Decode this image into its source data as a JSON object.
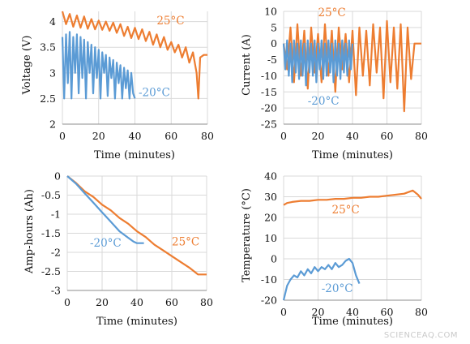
{
  "colors": {
    "warm": "#ED7D31",
    "cold": "#5B9BD5",
    "grid": "#d9d9d9",
    "axis": "#8c8c8c"
  },
  "watermark": "SCIENCEAQ.COM",
  "chart_data": [
    {
      "id": "voltage",
      "type": "line",
      "xlabel": "Time (minutes)",
      "ylabel": "Voltage (V)",
      "xlim": [
        0,
        80
      ],
      "ylim": [
        2,
        4.2
      ],
      "xticks": [
        0,
        20,
        40,
        60,
        80
      ],
      "yticks": [
        2,
        2.5,
        3,
        3.5,
        4
      ],
      "yticklabels": [
        "2",
        "2.5",
        "3",
        "3.5",
        "4"
      ],
      "grid": true,
      "series": [
        {
          "name": "25°C",
          "color": "warm",
          "x": [
            0,
            2,
            4,
            6,
            8,
            10,
            12,
            14,
            16,
            18,
            20,
            22,
            24,
            26,
            28,
            30,
            32,
            34,
            36,
            38,
            40,
            42,
            44,
            46,
            48,
            50,
            52,
            54,
            56,
            58,
            60,
            62,
            64,
            66,
            68,
            70,
            72,
            74,
            75,
            76,
            78,
            80
          ],
          "y": [
            4.2,
            3.95,
            4.15,
            3.9,
            4.12,
            3.88,
            4.1,
            3.86,
            4.05,
            3.85,
            4.02,
            3.84,
            4.0,
            3.82,
            3.98,
            3.78,
            3.95,
            3.72,
            3.9,
            3.68,
            3.88,
            3.66,
            3.85,
            3.62,
            3.8,
            3.55,
            3.75,
            3.5,
            3.7,
            3.45,
            3.6,
            3.4,
            3.55,
            3.3,
            3.5,
            3.2,
            3.4,
            3.0,
            2.5,
            3.3,
            3.35,
            3.35
          ]
        },
        {
          "name": "-20°C",
          "color": "cold",
          "x": [
            0,
            1,
            2,
            3,
            4,
            5,
            6,
            7,
            8,
            9,
            10,
            11,
            12,
            13,
            14,
            15,
            16,
            17,
            18,
            19,
            20,
            21,
            22,
            23,
            24,
            25,
            26,
            27,
            28,
            29,
            30,
            31,
            32,
            33,
            34,
            35,
            36,
            37,
            38,
            39,
            40
          ],
          "y": [
            3.7,
            2.5,
            3.75,
            2.8,
            3.8,
            2.5,
            3.7,
            3.0,
            3.75,
            2.6,
            3.7,
            2.9,
            3.65,
            2.5,
            3.6,
            3.0,
            3.55,
            2.6,
            3.5,
            2.9,
            3.45,
            2.5,
            3.4,
            3.0,
            3.35,
            2.55,
            3.3,
            2.9,
            3.25,
            2.5,
            3.2,
            2.8,
            3.15,
            2.5,
            3.1,
            2.7,
            3.05,
            2.5,
            3.0,
            2.6,
            2.5
          ]
        }
      ],
      "annotations": [
        {
          "text": "25°C",
          "series": "warm",
          "x": 52,
          "y": 3.95
        },
        {
          "text": "-20°C",
          "series": "cold",
          "x": 42,
          "y": 2.55
        }
      ]
    },
    {
      "id": "current",
      "type": "line",
      "xlabel": "Time (minutes)",
      "ylabel": "Current (A)",
      "xlim": [
        0,
        80
      ],
      "ylim": [
        -25,
        10
      ],
      "xticks": [
        0,
        20,
        40,
        60,
        80
      ],
      "yticks": [
        -25,
        -20,
        -15,
        -10,
        -5,
        0,
        5,
        10
      ],
      "yticklabels": [
        "-25",
        "-20",
        "-15",
        "-10",
        "-5",
        "0",
        "5",
        "10"
      ],
      "grid": true,
      "series": [
        {
          "name": "25°C",
          "color": "warm",
          "x": [
            0,
            2,
            4,
            6,
            8,
            10,
            12,
            14,
            16,
            18,
            20,
            22,
            24,
            26,
            28,
            30,
            32,
            34,
            36,
            38,
            40,
            42,
            44,
            46,
            48,
            50,
            52,
            54,
            56,
            58,
            60,
            62,
            64,
            66,
            68,
            70,
            72,
            74,
            76,
            78,
            80
          ],
          "y": [
            0,
            -8,
            5,
            -12,
            6,
            -10,
            4,
            -14,
            5,
            -9,
            3,
            -12,
            6,
            -10,
            4,
            -15,
            5,
            -8,
            3,
            -12,
            4,
            -16,
            5,
            -10,
            4,
            -13,
            6,
            -9,
            5,
            -17,
            7,
            -12,
            5,
            -14,
            6,
            -21,
            5,
            -11,
            0,
            0,
            0
          ]
        },
        {
          "name": "-20°C",
          "color": "cold",
          "x": [
            0,
            1,
            2,
            3,
            4,
            5,
            6,
            7,
            8,
            9,
            10,
            11,
            12,
            13,
            14,
            15,
            16,
            17,
            18,
            19,
            20,
            21,
            22,
            23,
            24,
            25,
            26,
            27,
            28,
            29,
            30,
            31,
            32,
            33,
            34,
            35,
            36,
            37,
            38,
            39,
            40
          ],
          "y": [
            0,
            -8,
            1,
            -10,
            0,
            -12,
            1,
            -9,
            0,
            -11,
            1,
            -10,
            0,
            -13,
            1,
            -9,
            0,
            -10,
            1,
            -12,
            0,
            -8,
            1,
            -11,
            0,
            -10,
            1,
            -9,
            0,
            -12,
            1,
            -10,
            0,
            -11,
            1,
            -9,
            0,
            -10,
            1,
            -8,
            0
          ]
        }
      ],
      "annotations": [
        {
          "text": "25°C",
          "series": "warm",
          "x": 20,
          "y": 8.5
        },
        {
          "text": "-20°C",
          "series": "cold",
          "x": 14,
          "y": -19
        }
      ]
    },
    {
      "id": "amphours",
      "type": "line",
      "xlabel": "Time (minutes)",
      "ylabel": "Amp-hours (Ah)",
      "xlim": [
        0,
        80
      ],
      "ylim": [
        -3,
        0
      ],
      "xticks": [
        0,
        20,
        40,
        60,
        80
      ],
      "yticks": [
        -3,
        -2.5,
        -2,
        -1.5,
        -1,
        -0.5,
        0
      ],
      "yticklabels": [
        "-3",
        "-2.5",
        "-2",
        "-1.5",
        "-1",
        "-0.5",
        "0"
      ],
      "grid": true,
      "series": [
        {
          "name": "25°C",
          "color": "warm",
          "x": [
            0,
            5,
            10,
            15,
            20,
            25,
            30,
            35,
            40,
            45,
            50,
            55,
            60,
            65,
            70,
            75,
            78,
            80
          ],
          "y": [
            0,
            -0.18,
            -0.4,
            -0.55,
            -0.75,
            -0.9,
            -1.1,
            -1.25,
            -1.45,
            -1.6,
            -1.8,
            -1.95,
            -2.1,
            -2.25,
            -2.4,
            -2.58,
            -2.58,
            -2.58
          ]
        },
        {
          "name": "-20°C",
          "color": "cold",
          "x": [
            0,
            5,
            10,
            15,
            20,
            25,
            30,
            35,
            38,
            40,
            42,
            44
          ],
          "y": [
            0,
            -0.2,
            -0.45,
            -0.7,
            -0.95,
            -1.2,
            -1.45,
            -1.62,
            -1.72,
            -1.76,
            -1.76,
            -1.76
          ]
        }
      ],
      "annotations": [
        {
          "text": "25°C",
          "series": "warm",
          "x": 60,
          "y": -1.82
        },
        {
          "text": "-20°C",
          "series": "cold",
          "x": 13,
          "y": -1.85
        }
      ]
    },
    {
      "id": "temperature",
      "type": "line",
      "xlabel": "Time (minutes)",
      "ylabel": "Temperature (°C)",
      "xlim": [
        0,
        80
      ],
      "ylim": [
        -20,
        40
      ],
      "xticks": [
        0,
        20,
        40,
        60,
        80
      ],
      "yticks": [
        -20,
        -10,
        0,
        10,
        20,
        30,
        40
      ],
      "yticklabels": [
        "-20",
        "-10",
        "0",
        "10",
        "20",
        "30",
        "40"
      ],
      "grid": true,
      "series": [
        {
          "name": "25°C",
          "color": "warm",
          "x": [
            0,
            2,
            5,
            10,
            15,
            20,
            25,
            30,
            35,
            40,
            45,
            50,
            55,
            60,
            65,
            70,
            75,
            78,
            80
          ],
          "y": [
            26,
            27,
            27.5,
            28,
            28,
            28.5,
            28.5,
            29,
            29,
            29.5,
            29.5,
            30,
            30,
            30.5,
            31,
            31.5,
            33,
            31,
            29
          ]
        },
        {
          "name": "-20°C",
          "color": "cold",
          "x": [
            0,
            2,
            4,
            6,
            8,
            10,
            12,
            14,
            16,
            18,
            20,
            22,
            24,
            26,
            28,
            30,
            32,
            34,
            36,
            38,
            40,
            42,
            44
          ],
          "y": [
            -20,
            -13,
            -10,
            -8,
            -9,
            -6,
            -8,
            -5,
            -7,
            -4,
            -6,
            -4,
            -5,
            -3,
            -5,
            -2,
            -4,
            -3,
            -1,
            0,
            -2,
            -8,
            -12
          ]
        }
      ],
      "annotations": [
        {
          "text": "25°C",
          "series": "warm",
          "x": 28,
          "y": 22
        },
        {
          "text": "-20°C",
          "series": "cold",
          "x": 22,
          "y": -16
        }
      ]
    }
  ]
}
